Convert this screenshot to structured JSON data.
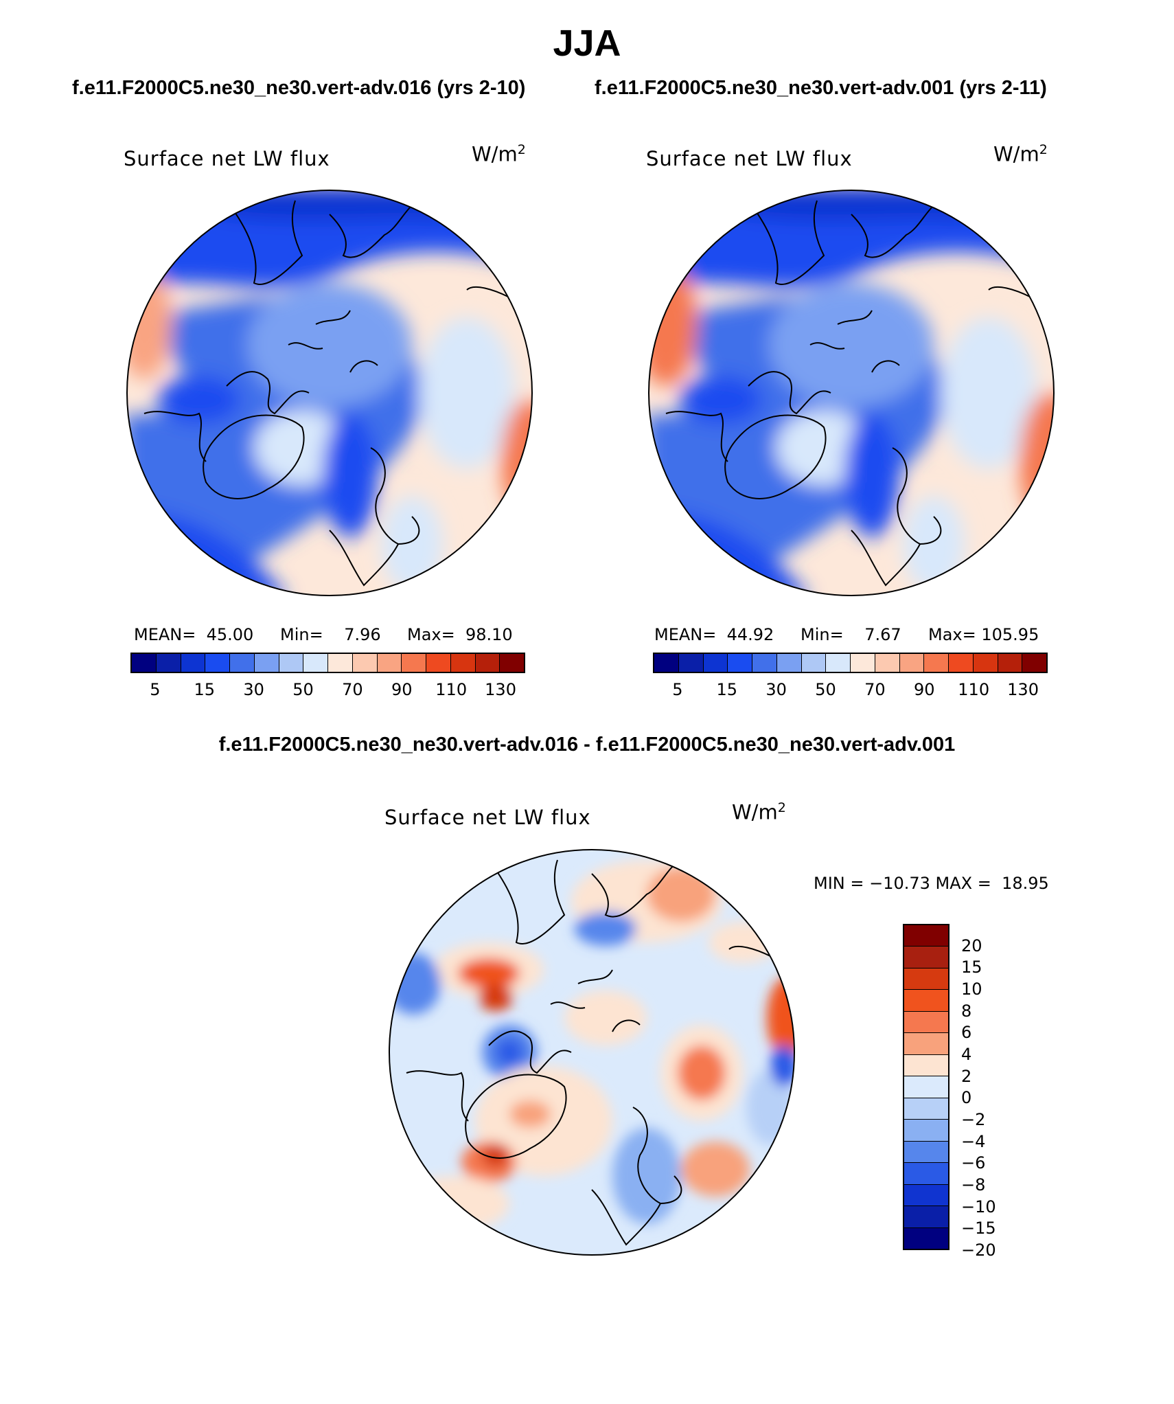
{
  "main_title": "JJA",
  "left_title": "f.e11.F2000C5.ne30_ne30.vert-adv.016 (yrs 2-10)",
  "right_title": "f.e11.F2000C5.ne30_ne30.vert-adv.001 (yrs 2-11)",
  "diff_title": "f.e11.F2000C5.ne30_ne30.vert-adv.016 - f.e11.F2000C5.ne30_ne30.vert-adv.001",
  "panels": [
    {
      "label": "Surface net LW flux",
      "units_base": "W/m",
      "units_exp": "2",
      "mean_text": "MEAN=  45.00",
      "min_text": "Min=    7.96",
      "max_text": "Max=  98.10"
    },
    {
      "label": "Surface net LW flux",
      "units_base": "W/m",
      "units_exp": "2",
      "mean_text": "MEAN=  44.92",
      "min_text": "Min=    7.67",
      "max_text": "Max= 105.95"
    }
  ],
  "diff_panel": {
    "label": "Surface net LW flux",
    "units_base": "W/m",
    "units_exp": "2",
    "minmax_text": "MIN = −10.73 MAX =  18.95"
  },
  "colorbar_main": {
    "colors": [
      "#000080",
      "#0a1fa8",
      "#0d34d2",
      "#1a4cf0",
      "#4170ea",
      "#7aa0f2",
      "#aec8f5",
      "#d8e8fb",
      "#fde8da",
      "#fcc9b0",
      "#f9a482",
      "#f5784f",
      "#ee4a20",
      "#d73510",
      "#b5200a",
      "#800000"
    ],
    "ticks": [
      "5",
      "15",
      "30",
      "50",
      "70",
      "90",
      "110",
      "130"
    ]
  },
  "colorbar_diff": {
    "colors": [
      "#800000",
      "#a82010",
      "#d63a10",
      "#f0531e",
      "#f5784f",
      "#f8a27c",
      "#fde4d2",
      "#dbeafc",
      "#b7d0f7",
      "#8ab0f2",
      "#5686ec",
      "#2a5ae6",
      "#1034d0",
      "#0a1fa8",
      "#000080"
    ],
    "ticks": [
      "20",
      "15",
      "10",
      "8",
      "6",
      "4",
      "2",
      "0",
      "−2",
      "−4",
      "−6",
      "−8",
      "−10",
      "−15",
      "−20"
    ]
  }
}
